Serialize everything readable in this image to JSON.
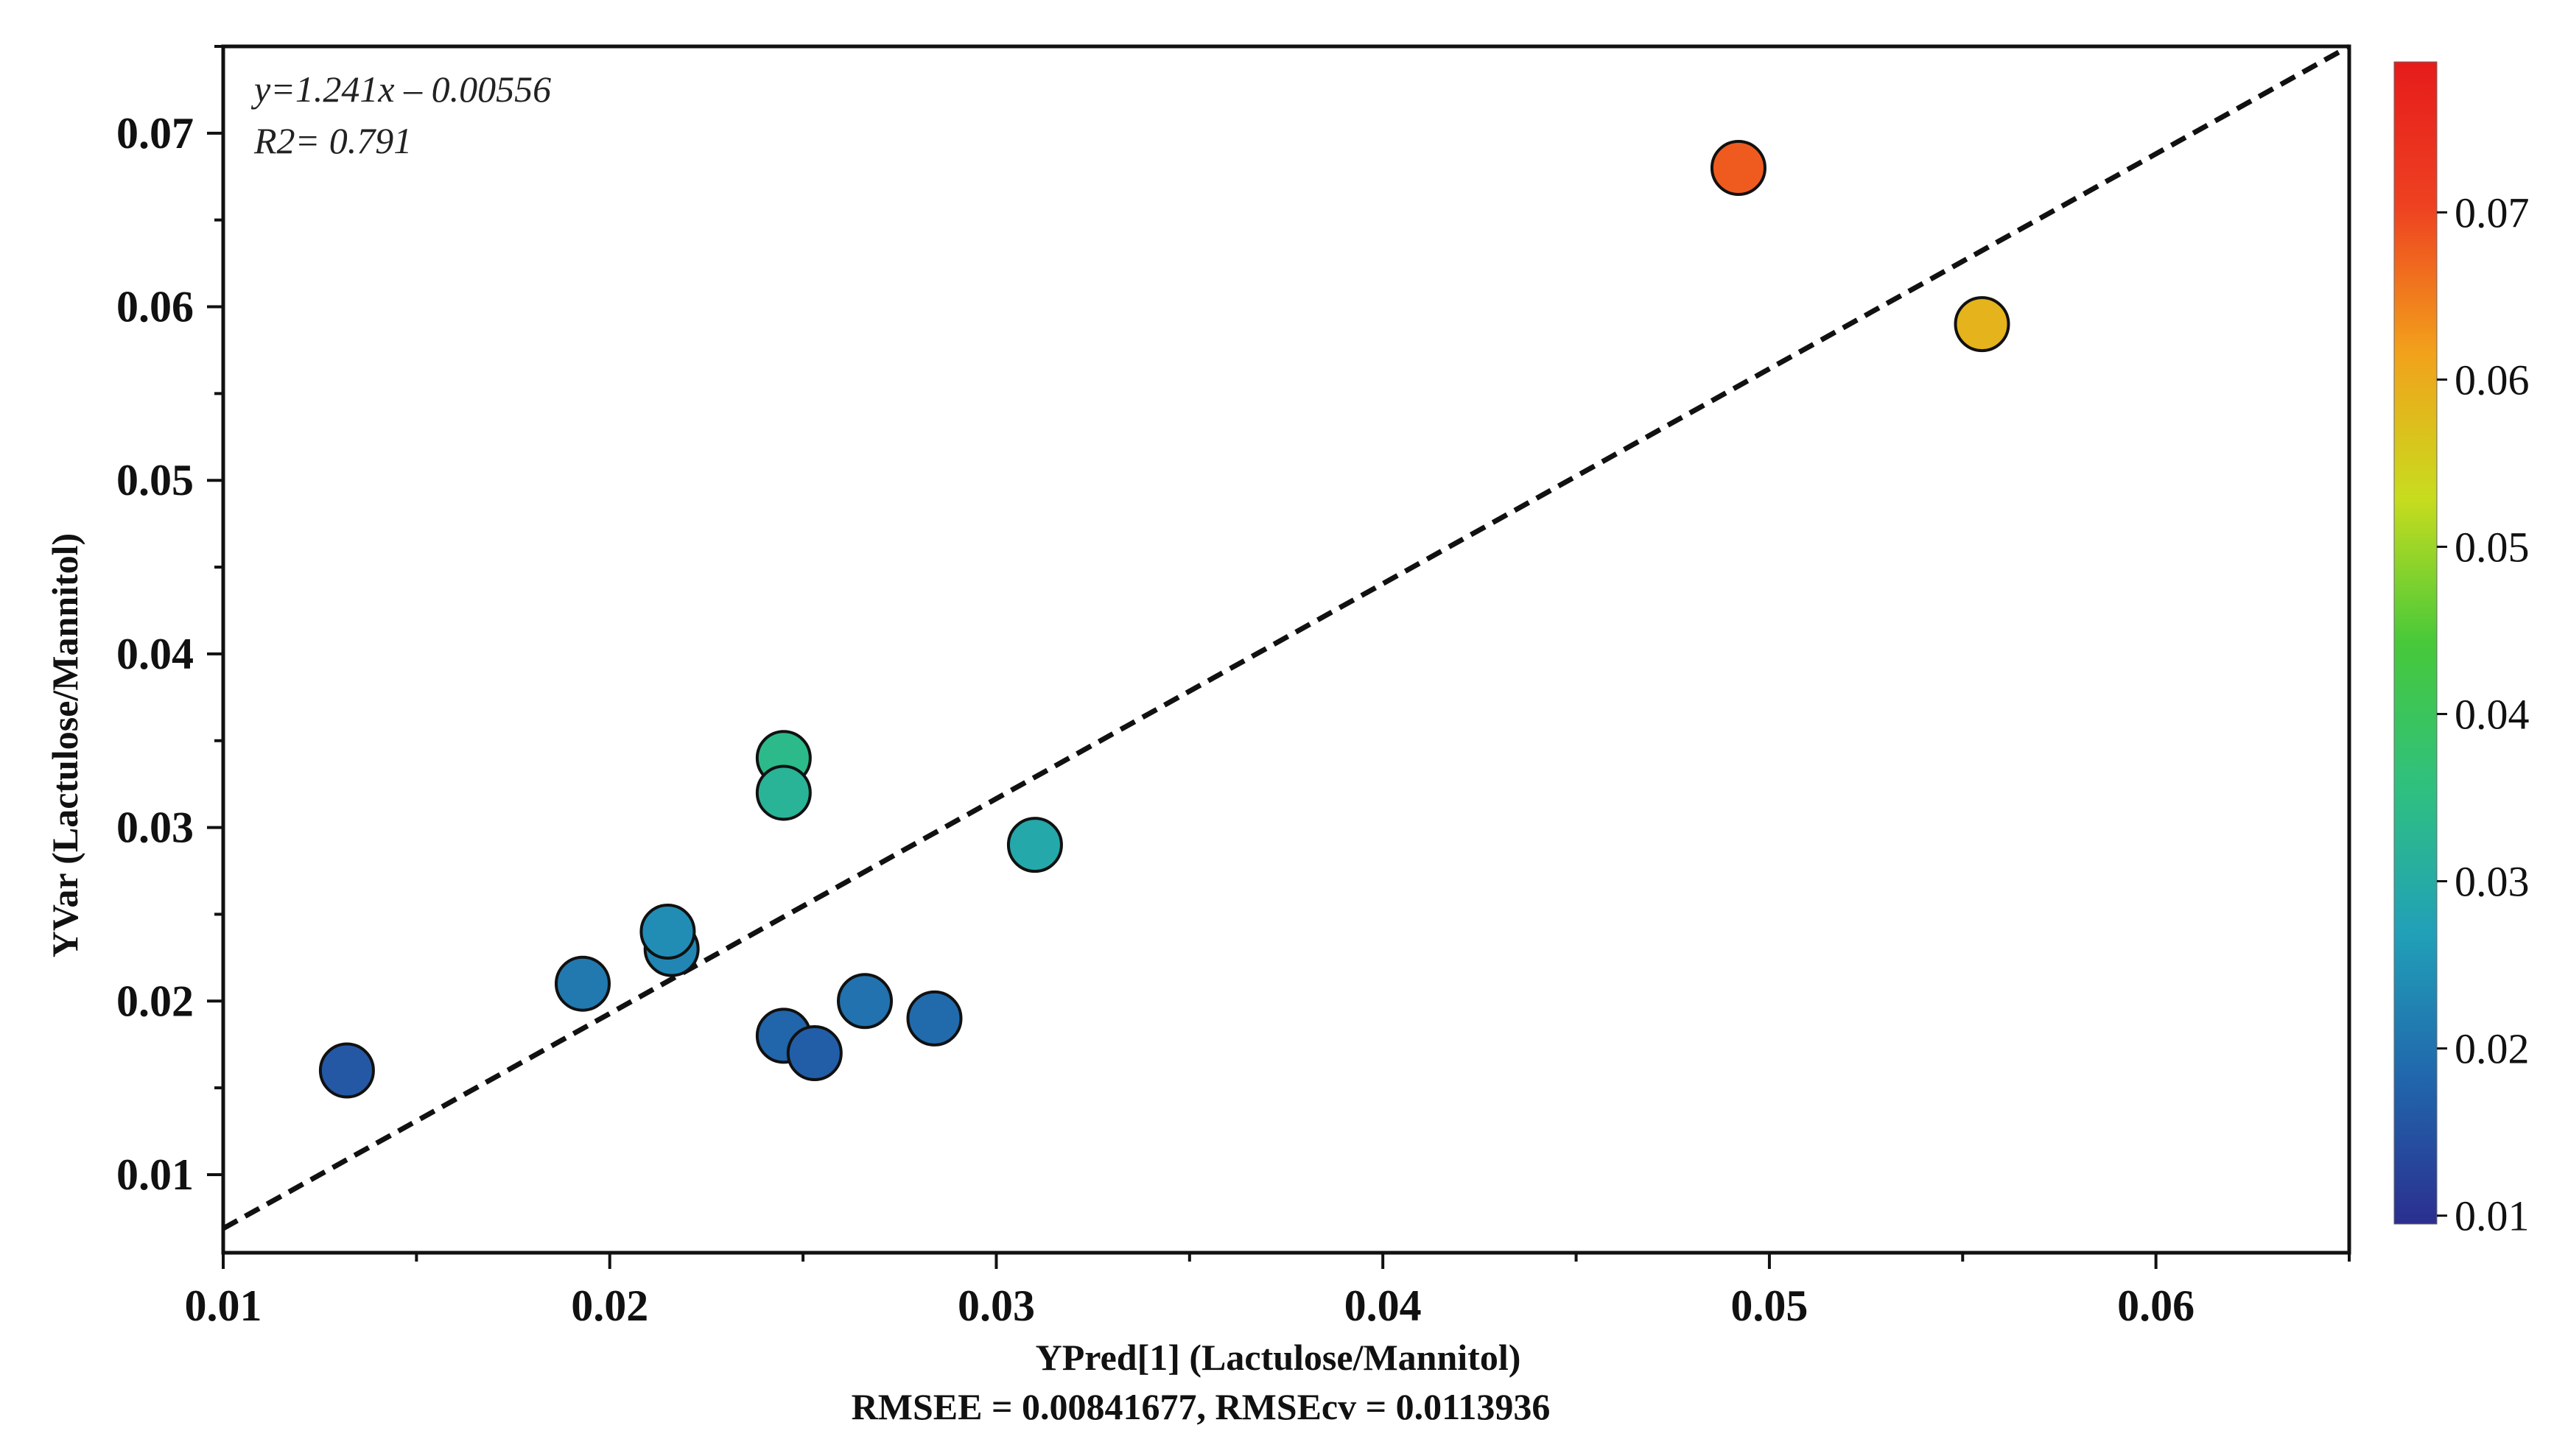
{
  "chart_data": {
    "type": "scatter",
    "title": "",
    "xlabel": "YPred[1]  (Lactulose/Mannitol)",
    "ylabel": "YVar (Lactulose/Mannitol)",
    "subtitle": "RMSEE = 0.00841677, RMSEcv = 0.0113936",
    "xlim": [
      0.01,
      0.065
    ],
    "ylim": [
      0.0055,
      0.075
    ],
    "x_ticks": [
      0.01,
      0.02,
      0.03,
      0.04,
      0.05,
      0.06
    ],
    "x_tick_labels": [
      "0.01",
      "0.02",
      "0.03",
      "0.04",
      "0.05",
      "0.06"
    ],
    "y_ticks": [
      0.01,
      0.02,
      0.03,
      0.04,
      0.05,
      0.06,
      0.07
    ],
    "y_tick_labels": [
      "0.01",
      "0.02",
      "0.03",
      "0.04",
      "0.05",
      "0.06",
      "0.07"
    ],
    "grid": false,
    "annotations": [
      "y=1.241x – 0.00556",
      "R2= 0.791"
    ],
    "regression_line": {
      "style": "dashed",
      "color": "#111111",
      "points": [
        [
          0.01,
          0.0069
        ],
        [
          0.065,
          0.075
        ]
      ]
    },
    "points": [
      {
        "x": 0.0132,
        "y": 0.016
      },
      {
        "x": 0.0193,
        "y": 0.021
      },
      {
        "x": 0.0216,
        "y": 0.023
      },
      {
        "x": 0.0215,
        "y": 0.024
      },
      {
        "x": 0.0245,
        "y": 0.034
      },
      {
        "x": 0.0245,
        "y": 0.032
      },
      {
        "x": 0.0245,
        "y": 0.018
      },
      {
        "x": 0.0253,
        "y": 0.017
      },
      {
        "x": 0.0266,
        "y": 0.02
      },
      {
        "x": 0.0284,
        "y": 0.019
      },
      {
        "x": 0.031,
        "y": 0.029
      },
      {
        "x": 0.0492,
        "y": 0.068
      },
      {
        "x": 0.0555,
        "y": 0.059
      }
    ],
    "colorbar": {
      "range": [
        0.0095,
        0.079
      ],
      "ticks": [
        0.01,
        0.02,
        0.03,
        0.04,
        0.05,
        0.06,
        0.07
      ],
      "tick_labels": [
        "0.01",
        "0.02",
        "0.03",
        "0.04",
        "0.05",
        "0.06",
        "0.07"
      ],
      "colormap": [
        "#2b2f8f",
        "#2166ac",
        "#21a0b8",
        "#2fc080",
        "#47c93a",
        "#c8dc1e",
        "#f2a11b",
        "#ee4221",
        "#e61b1b"
      ]
    },
    "marker_edge_color": "#111111"
  }
}
